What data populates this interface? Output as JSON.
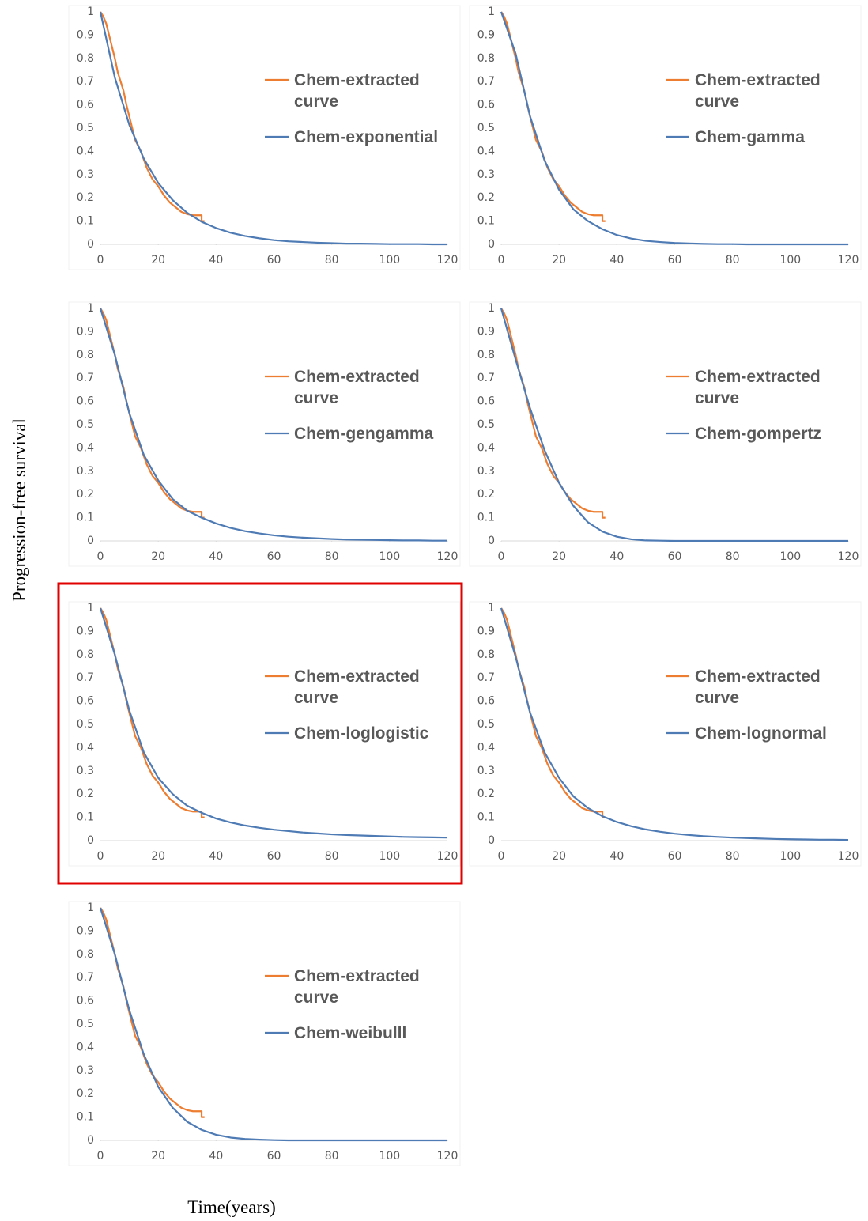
{
  "y_label": "Progression-free survival",
  "x_label": "Time(years)",
  "chart_data": [
    {
      "type": "line",
      "legend": "center right",
      "xlim": [
        0,
        120
      ],
      "ylim": [
        0,
        1
      ],
      "xticks": [
        0,
        20,
        40,
        60,
        80,
        100,
        120
      ],
      "yticks": [
        0,
        0.1,
        0.2,
        0.3,
        0.4,
        0.5,
        0.6,
        0.7,
        0.8,
        0.9,
        1
      ],
      "series": [
        {
          "name": "Chem-extracted curve",
          "color": "#ed7d31",
          "x": [
            0,
            1,
            2,
            3,
            4,
            5,
            6,
            7,
            8,
            9,
            10,
            11,
            12,
            14,
            16,
            18,
            20,
            22,
            24,
            26,
            28,
            30,
            32,
            35,
            35,
            36
          ],
          "values": [
            1,
            0.98,
            0.95,
            0.9,
            0.85,
            0.8,
            0.74,
            0.7,
            0.66,
            0.6,
            0.55,
            0.5,
            0.45,
            0.4,
            0.33,
            0.28,
            0.25,
            0.21,
            0.18,
            0.16,
            0.14,
            0.13,
            0.125,
            0.125,
            0.1,
            0.1
          ]
        },
        {
          "name": "Chem-exponential",
          "color": "#4f7bb5",
          "x": [
            0,
            5,
            10,
            15,
            20,
            25,
            30,
            35,
            40,
            45,
            50,
            55,
            60,
            65,
            70,
            75,
            80,
            85,
            90,
            95,
            100,
            105,
            110,
            115,
            120
          ],
          "values": [
            1,
            0.717,
            0.514,
            0.369,
            0.264,
            0.19,
            0.136,
            0.097,
            0.07,
            0.05,
            0.036,
            0.026,
            0.018,
            0.013,
            0.01,
            0.007,
            0.005,
            0.003,
            0.003,
            0.002,
            0.001,
            0.001,
            0.001,
            0,
            0
          ]
        }
      ]
    },
    {
      "type": "line",
      "legend": "center right",
      "xlim": [
        0,
        120
      ],
      "ylim": [
        0,
        1
      ],
      "xticks": [
        0,
        20,
        40,
        60,
        80,
        100,
        120
      ],
      "yticks": [
        0,
        0.1,
        0.2,
        0.3,
        0.4,
        0.5,
        0.6,
        0.7,
        0.8,
        0.9,
        1
      ],
      "series": [
        {
          "name": "Chem-extracted curve",
          "color": "#ed7d31",
          "x": [
            0,
            1,
            2,
            3,
            4,
            5,
            6,
            7,
            8,
            9,
            10,
            11,
            12,
            14,
            16,
            18,
            20,
            22,
            24,
            26,
            28,
            30,
            32,
            35,
            35,
            36
          ],
          "values": [
            1,
            0.98,
            0.95,
            0.9,
            0.85,
            0.8,
            0.74,
            0.7,
            0.66,
            0.6,
            0.55,
            0.5,
            0.45,
            0.4,
            0.33,
            0.28,
            0.25,
            0.21,
            0.18,
            0.16,
            0.14,
            0.13,
            0.125,
            0.125,
            0.1,
            0.1
          ]
        },
        {
          "name": "Chem-gamma",
          "color": "#4f7bb5",
          "x": [
            0,
            5,
            10,
            15,
            20,
            25,
            30,
            35,
            40,
            45,
            50,
            55,
            60,
            65,
            70,
            75,
            80,
            85,
            90,
            95,
            100,
            105,
            110,
            115,
            120
          ],
          "values": [
            1,
            0.82,
            0.55,
            0.36,
            0.235,
            0.15,
            0.1,
            0.065,
            0.04,
            0.025,
            0.015,
            0.01,
            0.006,
            0.004,
            0.002,
            0.001,
            0.001,
            0,
            0,
            0,
            0,
            0,
            0,
            0,
            0
          ]
        }
      ]
    },
    {
      "type": "line",
      "legend": "center right",
      "xlim": [
        0,
        120
      ],
      "ylim": [
        0,
        1
      ],
      "xticks": [
        0,
        20,
        40,
        60,
        80,
        100,
        120
      ],
      "yticks": [
        0,
        0.1,
        0.2,
        0.3,
        0.4,
        0.5,
        0.6,
        0.7,
        0.8,
        0.9,
        1
      ],
      "series": [
        {
          "name": "Chem-extracted curve",
          "color": "#ed7d31",
          "x": [
            0,
            1,
            2,
            3,
            4,
            5,
            6,
            7,
            8,
            9,
            10,
            11,
            12,
            14,
            16,
            18,
            20,
            22,
            24,
            26,
            28,
            30,
            32,
            35,
            35,
            36
          ],
          "values": [
            1,
            0.98,
            0.95,
            0.9,
            0.85,
            0.8,
            0.74,
            0.7,
            0.66,
            0.6,
            0.55,
            0.5,
            0.45,
            0.4,
            0.33,
            0.28,
            0.25,
            0.21,
            0.18,
            0.16,
            0.14,
            0.13,
            0.125,
            0.125,
            0.1,
            0.1
          ]
        },
        {
          "name": "Chem-gengamma",
          "color": "#4f7bb5",
          "x": [
            0,
            5,
            10,
            15,
            20,
            25,
            30,
            35,
            40,
            45,
            50,
            55,
            60,
            65,
            70,
            75,
            80,
            85,
            90,
            95,
            100,
            105,
            110,
            115,
            120
          ],
          "values": [
            1,
            0.8,
            0.55,
            0.37,
            0.26,
            0.18,
            0.13,
            0.1,
            0.075,
            0.056,
            0.042,
            0.032,
            0.024,
            0.018,
            0.014,
            0.011,
            0.008,
            0.006,
            0.005,
            0.004,
            0.003,
            0.002,
            0.002,
            0.001,
            0.001
          ]
        }
      ]
    },
    {
      "type": "line",
      "legend": "center right",
      "xlim": [
        0,
        120
      ],
      "ylim": [
        0,
        1
      ],
      "xticks": [
        0,
        20,
        40,
        60,
        80,
        100,
        120
      ],
      "yticks": [
        0,
        0.1,
        0.2,
        0.3,
        0.4,
        0.5,
        0.6,
        0.7,
        0.8,
        0.9,
        1
      ],
      "series": [
        {
          "name": "Chem-extracted curve",
          "color": "#ed7d31",
          "x": [
            0,
            1,
            2,
            3,
            4,
            5,
            6,
            7,
            8,
            9,
            10,
            11,
            12,
            14,
            16,
            18,
            20,
            22,
            24,
            26,
            28,
            30,
            32,
            35,
            35,
            36
          ],
          "values": [
            1,
            0.98,
            0.95,
            0.9,
            0.85,
            0.8,
            0.74,
            0.7,
            0.66,
            0.6,
            0.55,
            0.5,
            0.45,
            0.4,
            0.33,
            0.28,
            0.25,
            0.21,
            0.18,
            0.16,
            0.14,
            0.13,
            0.125,
            0.125,
            0.1,
            0.1
          ]
        },
        {
          "name": "Chem-gompertz",
          "color": "#4f7bb5",
          "x": [
            0,
            5,
            10,
            15,
            20,
            25,
            30,
            35,
            40,
            45,
            50,
            55,
            60,
            65,
            70,
            75,
            80,
            85,
            90,
            95,
            100,
            105,
            110,
            115,
            120
          ],
          "values": [
            1,
            0.78,
            0.57,
            0.39,
            0.25,
            0.15,
            0.08,
            0.04,
            0.018,
            0.007,
            0.002,
            0.001,
            0,
            0,
            0,
            0,
            0,
            0,
            0,
            0,
            0,
            0,
            0,
            0,
            0
          ]
        }
      ]
    },
    {
      "type": "line",
      "legend": "center right",
      "highlighted": true,
      "xlim": [
        0,
        120
      ],
      "ylim": [
        0,
        1
      ],
      "xticks": [
        0,
        20,
        40,
        60,
        80,
        100,
        120
      ],
      "yticks": [
        0,
        0.1,
        0.2,
        0.3,
        0.4,
        0.5,
        0.6,
        0.7,
        0.8,
        0.9,
        1
      ],
      "series": [
        {
          "name": "Chem-extracted curve",
          "color": "#ed7d31",
          "x": [
            0,
            1,
            2,
            3,
            4,
            5,
            6,
            7,
            8,
            9,
            10,
            11,
            12,
            14,
            16,
            18,
            20,
            22,
            24,
            26,
            28,
            30,
            32,
            35,
            35,
            36
          ],
          "values": [
            1,
            0.98,
            0.95,
            0.9,
            0.85,
            0.8,
            0.74,
            0.7,
            0.66,
            0.6,
            0.55,
            0.5,
            0.45,
            0.4,
            0.33,
            0.28,
            0.25,
            0.21,
            0.18,
            0.16,
            0.14,
            0.13,
            0.125,
            0.125,
            0.1,
            0.1
          ]
        },
        {
          "name": "Chem-loglogistic",
          "color": "#4f7bb5",
          "x": [
            0,
            5,
            10,
            15,
            20,
            25,
            30,
            35,
            40,
            45,
            50,
            55,
            60,
            65,
            70,
            75,
            80,
            85,
            90,
            95,
            100,
            105,
            110,
            115,
            120
          ],
          "values": [
            1,
            0.8,
            0.56,
            0.38,
            0.27,
            0.2,
            0.15,
            0.12,
            0.095,
            0.078,
            0.065,
            0.055,
            0.047,
            0.041,
            0.035,
            0.031,
            0.027,
            0.024,
            0.022,
            0.02,
            0.018,
            0.016,
            0.015,
            0.014,
            0.013
          ]
        }
      ]
    },
    {
      "type": "line",
      "legend": "center right",
      "xlim": [
        0,
        120
      ],
      "ylim": [
        0,
        1
      ],
      "xticks": [
        0,
        20,
        40,
        60,
        80,
        100,
        120
      ],
      "yticks": [
        0,
        0.1,
        0.2,
        0.3,
        0.4,
        0.5,
        0.6,
        0.7,
        0.8,
        0.9,
        1
      ],
      "series": [
        {
          "name": "Chem-extracted curve",
          "color": "#ed7d31",
          "x": [
            0,
            1,
            2,
            3,
            4,
            5,
            6,
            7,
            8,
            9,
            10,
            11,
            12,
            14,
            16,
            18,
            20,
            22,
            24,
            26,
            28,
            30,
            32,
            35,
            35,
            36
          ],
          "values": [
            1,
            0.98,
            0.95,
            0.9,
            0.85,
            0.8,
            0.74,
            0.7,
            0.66,
            0.6,
            0.55,
            0.5,
            0.45,
            0.4,
            0.33,
            0.28,
            0.25,
            0.21,
            0.18,
            0.16,
            0.14,
            0.13,
            0.125,
            0.125,
            0.1,
            0.1
          ]
        },
        {
          "name": "Chem-lognormal",
          "color": "#4f7bb5",
          "x": [
            0,
            5,
            10,
            15,
            20,
            25,
            30,
            35,
            40,
            45,
            50,
            55,
            60,
            65,
            70,
            75,
            80,
            85,
            90,
            95,
            100,
            105,
            110,
            115,
            120
          ],
          "values": [
            1,
            0.79,
            0.55,
            0.38,
            0.27,
            0.19,
            0.14,
            0.105,
            0.08,
            0.062,
            0.048,
            0.038,
            0.03,
            0.024,
            0.019,
            0.016,
            0.013,
            0.011,
            0.009,
            0.007,
            0.006,
            0.005,
            0.004,
            0.004,
            0.003
          ]
        }
      ]
    },
    {
      "type": "line",
      "legend": "center right",
      "xlim": [
        0,
        120
      ],
      "ylim": [
        0,
        1
      ],
      "xticks": [
        0,
        20,
        40,
        60,
        80,
        100,
        120
      ],
      "yticks": [
        0,
        0.1,
        0.2,
        0.3,
        0.4,
        0.5,
        0.6,
        0.7,
        0.8,
        0.9,
        1
      ],
      "series": [
        {
          "name": "Chem-extracted curve",
          "color": "#ed7d31",
          "x": [
            0,
            1,
            2,
            3,
            4,
            5,
            6,
            7,
            8,
            9,
            10,
            11,
            12,
            14,
            16,
            18,
            20,
            22,
            24,
            26,
            28,
            30,
            32,
            35,
            35,
            36
          ],
          "values": [
            1,
            0.98,
            0.95,
            0.9,
            0.85,
            0.8,
            0.74,
            0.7,
            0.66,
            0.6,
            0.55,
            0.5,
            0.45,
            0.4,
            0.33,
            0.28,
            0.25,
            0.21,
            0.18,
            0.16,
            0.14,
            0.13,
            0.125,
            0.125,
            0.1,
            0.1
          ]
        },
        {
          "name": "Chem-weibulll",
          "color": "#4f7bb5",
          "x": [
            0,
            5,
            10,
            15,
            20,
            25,
            30,
            35,
            40,
            45,
            50,
            55,
            60,
            65,
            70,
            75,
            80,
            85,
            90,
            95,
            100,
            105,
            110,
            115,
            120
          ],
          "values": [
            1,
            0.8,
            0.56,
            0.37,
            0.23,
            0.14,
            0.08,
            0.045,
            0.024,
            0.012,
            0.006,
            0.003,
            0.001,
            0,
            0,
            0,
            0,
            0,
            0,
            0,
            0,
            0,
            0,
            0,
            0
          ]
        }
      ]
    }
  ]
}
